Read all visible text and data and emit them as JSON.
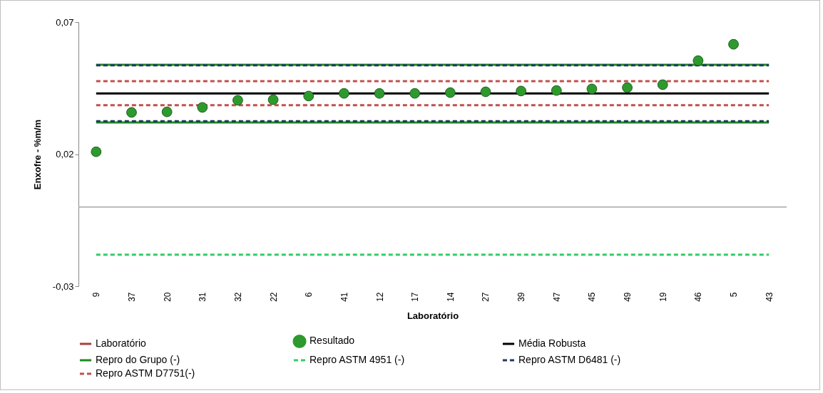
{
  "chart_data": {
    "type": "scatter",
    "xlabel": "Laboratório",
    "ylabel": "Enxofre - %m/m",
    "categories": [
      "9",
      "37",
      "20",
      "31",
      "32",
      "22",
      "6",
      "41",
      "12",
      "17",
      "14",
      "27",
      "39",
      "47",
      "45",
      "49",
      "19",
      "46",
      "5",
      "43"
    ],
    "ylim": [
      -0.03,
      0.07
    ],
    "yticks": [
      {
        "value": -0.03,
        "label": "-0,03"
      },
      {
        "value": 0.02,
        "label": "0,02"
      },
      {
        "value": 0.07,
        "label": "0,07"
      }
    ],
    "grid": false,
    "legend": "bottom",
    "ref_lines": [
      {
        "axis": "y",
        "value": 0,
        "color": "#a6a6a6"
      }
    ],
    "series": [
      {
        "name": "Laboratório",
        "type": "line",
        "color": "#a9403d",
        "line_style": "solid",
        "values": [
          null,
          null,
          null,
          null,
          null,
          null,
          null,
          null,
          null,
          null,
          null,
          null,
          null,
          null,
          null,
          null,
          null,
          null,
          null,
          null
        ]
      },
      {
        "name": "Resultado",
        "marker": "circle",
        "color": "#2e9a2e",
        "values": [
          0.0209,
          0.0358,
          0.036,
          0.0377,
          0.0404,
          0.0406,
          0.042,
          0.043,
          0.043,
          0.043,
          0.0433,
          0.0436,
          0.0439,
          0.0441,
          0.0447,
          0.0452,
          0.0463,
          0.0554,
          0.0616,
          null
        ]
      },
      {
        "name": "Média Robusta",
        "type": "line",
        "color": "#000000",
        "line_style": "solid",
        "values": [
          0.043,
          0.043,
          0.043,
          0.043,
          0.043,
          0.043,
          0.043,
          0.043,
          0.043,
          0.043,
          0.043,
          0.043,
          0.043,
          0.043,
          0.043,
          0.043,
          0.043,
          0.043,
          0.043,
          0.043
        ]
      },
      {
        "name": "Repro do Grupo (-)",
        "type": "line",
        "color": "#1e8c1e",
        "line_style": "solid",
        "values": [
          0.032,
          0.032,
          0.032,
          0.032,
          0.032,
          0.032,
          0.032,
          0.032,
          0.032,
          0.032,
          0.032,
          0.032,
          0.032,
          0.032,
          0.032,
          0.032,
          0.032,
          0.032,
          0.032,
          0.032
        ]
      },
      {
        "name": "Repro ASTM 4951 (-)",
        "type": "line",
        "color": "#33cc66",
        "line_style": "dashed",
        "values": [
          -0.0181,
          -0.0181,
          -0.0181,
          -0.0181,
          -0.0181,
          -0.0181,
          -0.0181,
          -0.0181,
          -0.0181,
          -0.0181,
          -0.0181,
          -0.0181,
          -0.0181,
          -0.0181,
          -0.0181,
          -0.0181,
          -0.0181,
          -0.0181,
          -0.0181,
          -0.0181
        ]
      },
      {
        "name": "Repro ASTM D6481 (-)",
        "type": "line",
        "color": "#1f3864",
        "line_style": "dashed",
        "values": [
          0.0325,
          0.0325,
          0.0325,
          0.0325,
          0.0325,
          0.0325,
          0.0325,
          0.0325,
          0.0325,
          0.0325,
          0.0325,
          0.0325,
          0.0325,
          0.0325,
          0.0325,
          0.0325,
          0.0325,
          0.0325,
          0.0325,
          0.0325
        ]
      },
      {
        "name": "Repro ASTM D7751(-)",
        "type": "line",
        "color": "#c0504d",
        "line_style": "dashed",
        "values": [
          0.0385,
          0.0385,
          0.0385,
          0.0385,
          0.0385,
          0.0385,
          0.0385,
          0.0385,
          0.0385,
          0.0385,
          0.0385,
          0.0385,
          0.0385,
          0.0385,
          0.0385,
          0.0385,
          0.0385,
          0.0385,
          0.0385,
          0.0385
        ]
      },
      {
        "type": "line",
        "color": "#1e8c1e",
        "line_style": "solid",
        "values": [
          0.0538,
          0.0538,
          0.0538,
          0.0538,
          0.0538,
          0.0538,
          0.0538,
          0.0538,
          0.0538,
          0.0538,
          0.0538,
          0.0538,
          0.0538,
          0.0538,
          0.0538,
          0.0538,
          0.0538,
          0.0538,
          0.0538,
          0.0538
        ]
      },
      {
        "type": "line",
        "color": "#1f3864",
        "line_style": "dashed",
        "values": [
          0.0536,
          0.0536,
          0.0536,
          0.0536,
          0.0536,
          0.0536,
          0.0536,
          0.0536,
          0.0536,
          0.0536,
          0.0536,
          0.0536,
          0.0536,
          0.0536,
          0.0536,
          0.0536,
          0.0536,
          0.0536,
          0.0536,
          0.0536
        ]
      },
      {
        "type": "line",
        "color": "#c0504d",
        "line_style": "dashed",
        "values": [
          0.0476,
          0.0476,
          0.0476,
          0.0476,
          0.0476,
          0.0476,
          0.0476,
          0.0476,
          0.0476,
          0.0476,
          0.0476,
          0.0476,
          0.0476,
          0.0476,
          0.0476,
          0.0476,
          0.0476,
          0.0476,
          0.0476,
          0.0476
        ]
      }
    ]
  }
}
